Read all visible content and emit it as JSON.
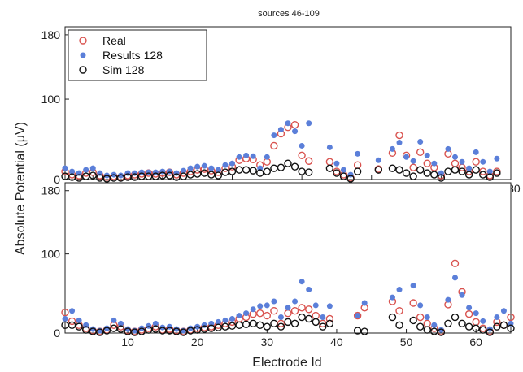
{
  "title": "sources 46-109",
  "ylabel": "Absolute Potential (μV)",
  "xlabel": "Electrode Id",
  "legend": {
    "placement": "top-left",
    "entries": [
      {
        "label": "Real",
        "marker": "open-circle",
        "color": "#d9534f"
      },
      {
        "label": "Results 128",
        "marker": "dot",
        "color": "#5b7fd9"
      },
      {
        "label": "Sim 128",
        "marker": "open-circle",
        "color": "#111111"
      }
    ]
  },
  "chart_data": [
    {
      "type": "scatter",
      "panel": "top",
      "title": "sources 46-109",
      "xlim": [
        66,
        130
      ],
      "ylim": [
        0,
        190
      ],
      "xticks": [
        70,
        80,
        90,
        100,
        110,
        120,
        130
      ],
      "yticks": [
        0,
        100,
        180
      ],
      "series": [
        {
          "name": "Real",
          "color": "#d9534f",
          "x": [
            66,
            67,
            68,
            69,
            70,
            71,
            72,
            73,
            74,
            75,
            76,
            77,
            78,
            79,
            80,
            81,
            82,
            83,
            84,
            85,
            86,
            87,
            88,
            89,
            90,
            91,
            92,
            93,
            94,
            95,
            96,
            97,
            98,
            99,
            100,
            101,
            104,
            105,
            106,
            107,
            108,
            111,
            113,
            114,
            115,
            116,
            117,
            118,
            119,
            120,
            121,
            122,
            123,
            124,
            125,
            126,
            127,
            128
          ],
          "y": [
            10,
            6,
            5,
            8,
            9,
            5,
            3,
            4,
            3,
            5,
            6,
            7,
            8,
            7,
            8,
            9,
            6,
            8,
            10,
            12,
            13,
            11,
            9,
            14,
            16,
            24,
            26,
            25,
            18,
            22,
            42,
            57,
            65,
            68,
            30,
            23,
            22,
            10,
            6,
            2,
            18,
            13,
            33,
            55,
            30,
            15,
            34,
            20,
            15,
            5,
            32,
            20,
            15,
            10,
            22,
            10,
            5,
            10
          ]
        },
        {
          "name": "Results 128",
          "color": "#5b7fd9",
          "x": [
            66,
            67,
            68,
            69,
            70,
            71,
            72,
            73,
            74,
            75,
            76,
            77,
            78,
            79,
            80,
            81,
            82,
            83,
            84,
            85,
            86,
            87,
            88,
            89,
            90,
            91,
            92,
            93,
            94,
            95,
            96,
            97,
            98,
            99,
            100,
            101,
            104,
            105,
            106,
            107,
            108,
            111,
            113,
            114,
            115,
            116,
            117,
            118,
            119,
            120,
            121,
            122,
            123,
            124,
            125,
            126,
            127,
            128
          ],
          "y": [
            14,
            10,
            8,
            12,
            14,
            8,
            5,
            6,
            5,
            8,
            8,
            9,
            9,
            9,
            10,
            10,
            8,
            11,
            14,
            16,
            17,
            14,
            12,
            18,
            20,
            28,
            30,
            29,
            14,
            28,
            55,
            62,
            70,
            60,
            42,
            70,
            40,
            20,
            12,
            6,
            32,
            24,
            38,
            46,
            28,
            23,
            47,
            30,
            20,
            8,
            38,
            28,
            22,
            14,
            34,
            22,
            10,
            26
          ]
        },
        {
          "name": "Sim 128",
          "color": "#111111",
          "x": [
            66,
            67,
            68,
            69,
            70,
            71,
            72,
            73,
            74,
            75,
            76,
            77,
            78,
            79,
            80,
            81,
            82,
            83,
            84,
            85,
            86,
            87,
            88,
            89,
            90,
            91,
            92,
            93,
            94,
            95,
            96,
            97,
            98,
            99,
            100,
            101,
            104,
            105,
            106,
            107,
            108,
            111,
            113,
            114,
            115,
            116,
            117,
            118,
            119,
            120,
            121,
            122,
            123,
            124,
            125,
            126,
            127,
            128
          ],
          "y": [
            4,
            3,
            2,
            4,
            5,
            2,
            1,
            2,
            2,
            3,
            3,
            4,
            4,
            4,
            5,
            5,
            3,
            4,
            6,
            7,
            8,
            6,
            5,
            9,
            10,
            12,
            12,
            11,
            8,
            10,
            14,
            15,
            20,
            16,
            10,
            9,
            14,
            8,
            4,
            1,
            10,
            12,
            14,
            12,
            8,
            4,
            12,
            8,
            6,
            2,
            10,
            12,
            10,
            6,
            12,
            6,
            3,
            8
          ]
        }
      ]
    },
    {
      "type": "scatter",
      "panel": "bottom",
      "xlim": [
        1,
        65
      ],
      "ylim": [
        0,
        190
      ],
      "xticks": [
        10,
        20,
        30,
        40,
        50,
        60
      ],
      "yticks": [
        0,
        100,
        180
      ],
      "series": [
        {
          "name": "Real",
          "color": "#d9534f",
          "x": [
            1,
            2,
            3,
            4,
            5,
            6,
            7,
            8,
            9,
            10,
            11,
            12,
            13,
            14,
            15,
            16,
            17,
            18,
            19,
            20,
            21,
            22,
            23,
            24,
            25,
            26,
            27,
            28,
            29,
            30,
            31,
            32,
            33,
            34,
            35,
            36,
            37,
            38,
            39,
            43,
            44,
            48,
            49,
            51,
            52,
            53,
            54,
            55,
            56,
            57,
            58,
            59,
            60,
            61,
            62,
            63,
            64,
            65
          ],
          "y": [
            26,
            15,
            10,
            6,
            3,
            2,
            4,
            10,
            8,
            3,
            2,
            4,
            6,
            8,
            4,
            5,
            3,
            2,
            4,
            6,
            7,
            8,
            10,
            12,
            14,
            18,
            20,
            24,
            25,
            22,
            28,
            12,
            25,
            28,
            32,
            30,
            22,
            12,
            18,
            22,
            32,
            40,
            28,
            38,
            20,
            12,
            6,
            2,
            36,
            88,
            52,
            24,
            14,
            6,
            2,
            14,
            10,
            20
          ]
        },
        {
          "name": "Results 128",
          "color": "#5b7fd9",
          "x": [
            1,
            2,
            3,
            4,
            5,
            6,
            7,
            8,
            9,
            10,
            11,
            12,
            13,
            14,
            15,
            16,
            17,
            18,
            19,
            20,
            21,
            22,
            23,
            24,
            25,
            26,
            27,
            28,
            29,
            30,
            31,
            32,
            33,
            34,
            35,
            36,
            37,
            38,
            39,
            43,
            44,
            48,
            49,
            51,
            52,
            53,
            54,
            55,
            56,
            57,
            58,
            59,
            60,
            61,
            62,
            63,
            64,
            65
          ],
          "y": [
            18,
            28,
            16,
            10,
            5,
            3,
            6,
            16,
            12,
            5,
            3,
            6,
            9,
            12,
            7,
            8,
            5,
            3,
            6,
            8,
            10,
            12,
            14,
            16,
            18,
            22,
            25,
            30,
            34,
            35,
            40,
            20,
            32,
            40,
            65,
            55,
            35,
            20,
            34,
            22,
            38,
            45,
            55,
            60,
            35,
            20,
            10,
            4,
            42,
            70,
            48,
            32,
            25,
            15,
            5,
            20,
            28,
            12
          ]
        },
        {
          "name": "Sim 128",
          "color": "#111111",
          "x": [
            1,
            2,
            3,
            4,
            5,
            6,
            7,
            8,
            9,
            10,
            11,
            12,
            13,
            14,
            15,
            16,
            17,
            18,
            19,
            20,
            21,
            22,
            23,
            24,
            25,
            26,
            27,
            28,
            29,
            30,
            31,
            32,
            33,
            34,
            35,
            36,
            37,
            38,
            39,
            43,
            44,
            48,
            49,
            51,
            52,
            53,
            54,
            55,
            56,
            57,
            58,
            59,
            60,
            61,
            62,
            63,
            64,
            65
          ],
          "y": [
            10,
            10,
            8,
            4,
            2,
            1,
            3,
            6,
            5,
            2,
            1,
            2,
            4,
            5,
            3,
            3,
            2,
            1,
            3,
            4,
            5,
            6,
            7,
            8,
            9,
            10,
            11,
            12,
            10,
            8,
            12,
            8,
            14,
            12,
            20,
            18,
            14,
            8,
            12,
            3,
            2,
            20,
            10,
            16,
            8,
            4,
            2,
            1,
            12,
            20,
            12,
            8,
            6,
            4,
            1,
            8,
            10,
            6
          ]
        }
      ]
    }
  ]
}
